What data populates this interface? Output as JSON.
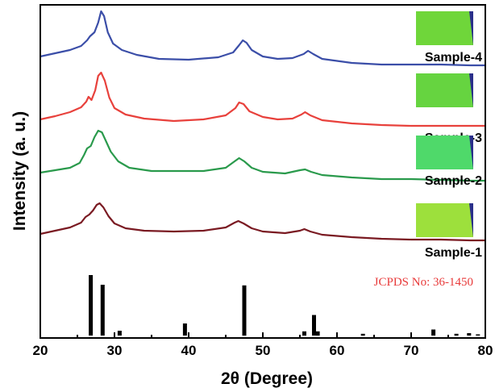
{
  "chart_data": {
    "type": "line",
    "xlabel": "2θ (Degree)",
    "ylabel": "Intensity (a. u.)",
    "xlim": [
      20,
      80
    ],
    "xticks": [
      20,
      30,
      40,
      50,
      60,
      70,
      80
    ],
    "tick_labels": [
      "20",
      "30",
      "40",
      "50",
      "60",
      "70",
      "80"
    ],
    "y_ticks_shown": false,
    "grid": false,
    "reference": {
      "label": "JCPDS No: 36-1450",
      "color": "#e83a3a",
      "lines": [
        {
          "x": 26.8,
          "h": 1.0
        },
        {
          "x": 28.4,
          "h": 0.84
        },
        {
          "x": 30.7,
          "h": 0.08
        },
        {
          "x": 39.5,
          "h": 0.2
        },
        {
          "x": 47.5,
          "h": 0.83
        },
        {
          "x": 55.6,
          "h": 0.07
        },
        {
          "x": 56.9,
          "h": 0.34
        },
        {
          "x": 57.4,
          "h": 0.07
        },
        {
          "x": 63.5,
          "h": 0.03
        },
        {
          "x": 73.0,
          "h": 0.1
        },
        {
          "x": 76.1,
          "h": 0.03
        },
        {
          "x": 77.8,
          "h": 0.04
        },
        {
          "x": 79.0,
          "h": 0.02
        }
      ]
    },
    "series": [
      {
        "name": "Sample-4",
        "color": "#3b4ea8",
        "inset_color": "#6fd63a",
        "points": [
          [
            20,
            58
          ],
          [
            22,
            54
          ],
          [
            24,
            50
          ],
          [
            25.5,
            45
          ],
          [
            26.3,
            38
          ],
          [
            26.7,
            33
          ],
          [
            27.3,
            28
          ],
          [
            27.8,
            16
          ],
          [
            28.2,
            2
          ],
          [
            28.6,
            8
          ],
          [
            29.1,
            28
          ],
          [
            29.8,
            42
          ],
          [
            31,
            50
          ],
          [
            33,
            56
          ],
          [
            36,
            61
          ],
          [
            40,
            62
          ],
          [
            44,
            59
          ],
          [
            46,
            53
          ],
          [
            46.8,
            44
          ],
          [
            47.3,
            38
          ],
          [
            47.8,
            41
          ],
          [
            48.5,
            50
          ],
          [
            50,
            58
          ],
          [
            52,
            61
          ],
          [
            54,
            60
          ],
          [
            55.5,
            55
          ],
          [
            56.1,
            51
          ],
          [
            56.8,
            55
          ],
          [
            58,
            61
          ],
          [
            62,
            66
          ],
          [
            66,
            68
          ],
          [
            70,
            68
          ],
          [
            74,
            68
          ],
          [
            78,
            69
          ],
          [
            80,
            69
          ]
        ]
      },
      {
        "name": "Sample-3",
        "color": "#e8413c",
        "inset_color": "#66d440",
        "points": [
          [
            20,
            60
          ],
          [
            22,
            56
          ],
          [
            24,
            51
          ],
          [
            25.5,
            45
          ],
          [
            26.2,
            38
          ],
          [
            26.5,
            32
          ],
          [
            26.9,
            36
          ],
          [
            27.4,
            24
          ],
          [
            27.8,
            6
          ],
          [
            28.2,
            2
          ],
          [
            28.7,
            12
          ],
          [
            29.3,
            33
          ],
          [
            30,
            46
          ],
          [
            31.5,
            54
          ],
          [
            34,
            59
          ],
          [
            38,
            62
          ],
          [
            42,
            60
          ],
          [
            45,
            55
          ],
          [
            46.3,
            46
          ],
          [
            46.8,
            39
          ],
          [
            47.4,
            41
          ],
          [
            48.2,
            50
          ],
          [
            50,
            57
          ],
          [
            52,
            60
          ],
          [
            54,
            59
          ],
          [
            55.2,
            54
          ],
          [
            55.7,
            51
          ],
          [
            56.4,
            55
          ],
          [
            58,
            61
          ],
          [
            62,
            65
          ],
          [
            66,
            67
          ],
          [
            70,
            68
          ],
          [
            74,
            68
          ],
          [
            78,
            68
          ],
          [
            80,
            68
          ]
        ]
      },
      {
        "name": "Sample-2",
        "color": "#2a9a4c",
        "inset_color": "#4fd96a",
        "points": [
          [
            20,
            60
          ],
          [
            22,
            57
          ],
          [
            24,
            54
          ],
          [
            25.3,
            48
          ],
          [
            25.9,
            38
          ],
          [
            26.3,
            30
          ],
          [
            26.8,
            27
          ],
          [
            27.3,
            16
          ],
          [
            27.8,
            8
          ],
          [
            28.3,
            10
          ],
          [
            28.8,
            20
          ],
          [
            29.5,
            34
          ],
          [
            30.5,
            46
          ],
          [
            32,
            54
          ],
          [
            35,
            58
          ],
          [
            38,
            58
          ],
          [
            42,
            58
          ],
          [
            45,
            54
          ],
          [
            46.2,
            46
          ],
          [
            46.8,
            42
          ],
          [
            47.5,
            46
          ],
          [
            48.5,
            54
          ],
          [
            50,
            59
          ],
          [
            53,
            61
          ],
          [
            55,
            57
          ],
          [
            55.7,
            56
          ],
          [
            56.5,
            59
          ],
          [
            58,
            63
          ],
          [
            62,
            66
          ],
          [
            66,
            68
          ],
          [
            70,
            68
          ],
          [
            74,
            69
          ],
          [
            78,
            70
          ],
          [
            80,
            70
          ]
        ]
      },
      {
        "name": "Sample-1",
        "color": "#7a1a22",
        "inset_color": "#9de03c",
        "points": [
          [
            20,
            62
          ],
          [
            22,
            58
          ],
          [
            24,
            54
          ],
          [
            25.5,
            48
          ],
          [
            26.1,
            41
          ],
          [
            26.6,
            38
          ],
          [
            27.1,
            33
          ],
          [
            27.6,
            26
          ],
          [
            28,
            24
          ],
          [
            28.5,
            29
          ],
          [
            29.2,
            40
          ],
          [
            30,
            49
          ],
          [
            31.5,
            55
          ],
          [
            34,
            58
          ],
          [
            38,
            59
          ],
          [
            42,
            58
          ],
          [
            45,
            54
          ],
          [
            46.2,
            48
          ],
          [
            46.7,
            46
          ],
          [
            47.4,
            49
          ],
          [
            48.5,
            55
          ],
          [
            50,
            59
          ],
          [
            53,
            61
          ],
          [
            55,
            58
          ],
          [
            55.6,
            56
          ],
          [
            56.4,
            59
          ],
          [
            58,
            63
          ],
          [
            62,
            66
          ],
          [
            66,
            68
          ],
          [
            70,
            69
          ],
          [
            74,
            69
          ],
          [
            78,
            70
          ],
          [
            80,
            70
          ]
        ]
      }
    ]
  }
}
